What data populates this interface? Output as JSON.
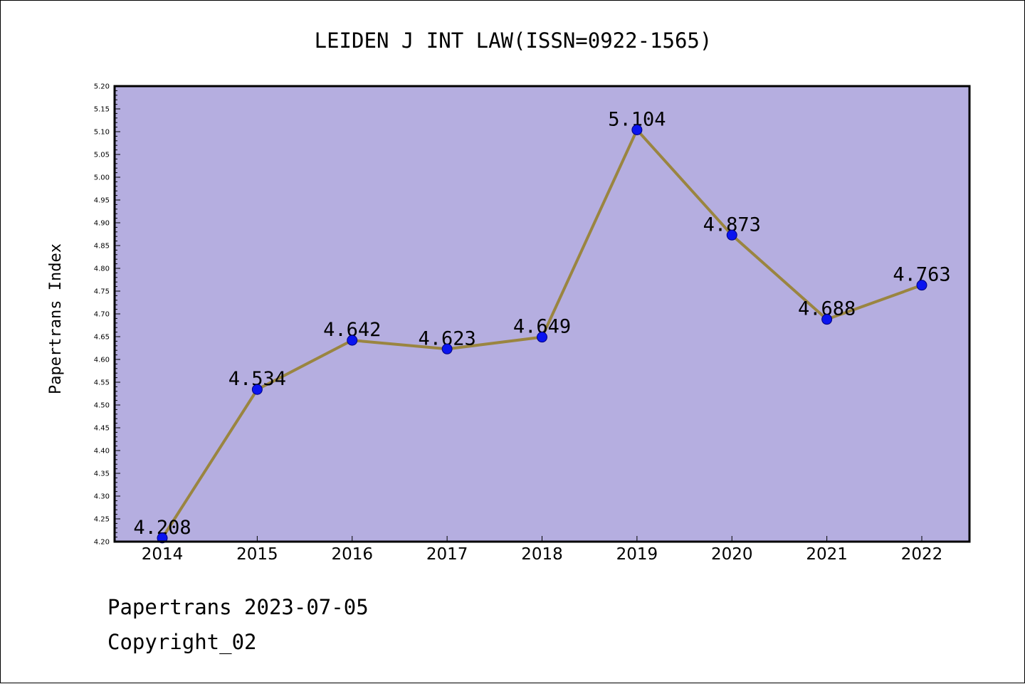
{
  "chart_data": {
    "type": "line",
    "title": "LEIDEN J INT LAW(ISSN=0922-1565)",
    "xlabel": "",
    "ylabel": "Papertrans Index",
    "categories": [
      "2014",
      "2015",
      "2016",
      "2017",
      "2018",
      "2019",
      "2020",
      "2021",
      "2022"
    ],
    "series": [
      {
        "values": [
          4.208,
          4.534,
          4.642,
          4.623,
          4.649,
          5.104,
          4.873,
          4.688,
          4.763
        ],
        "labels": [
          "4.208",
          "4.534",
          "4.642",
          "4.623",
          "4.649",
          "5.104",
          "4.873",
          "4.688",
          "4.763"
        ]
      }
    ],
    "ylim": [
      4.2,
      5.2
    ],
    "yticks": [
      "4.20",
      "4.25",
      "4.30",
      "4.35",
      "4.40",
      "4.45",
      "4.50",
      "4.55",
      "4.60",
      "4.65",
      "4.70",
      "4.75",
      "4.80",
      "4.85",
      "4.90",
      "4.95",
      "5.00",
      "5.05",
      "5.10",
      "5.15",
      "5.20"
    ],
    "grid": false,
    "legend": "none",
    "colors": {
      "plot_background": "#b5aee0",
      "line": "#9a8540",
      "marker": "#0a14f0",
      "marker_edge": "#000080"
    }
  },
  "footer": {
    "line1": "Papertrans 2023-07-05",
    "line2": "Copyright_02"
  }
}
